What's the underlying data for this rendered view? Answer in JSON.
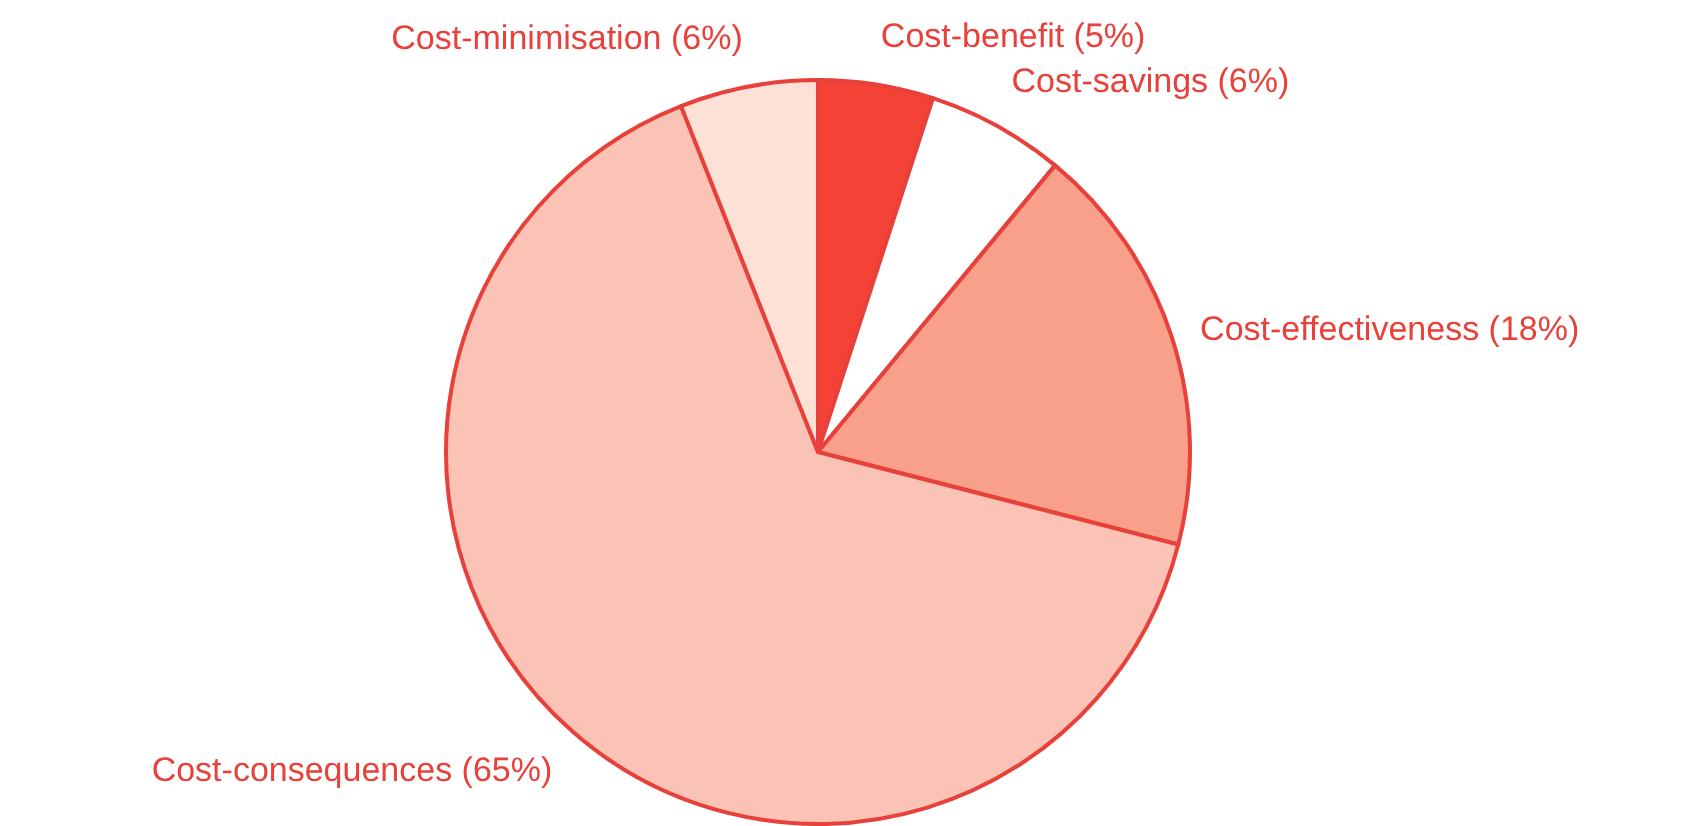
{
  "chart_data": {
    "type": "pie",
    "categories": [
      "Cost-benefit (5%)",
      "Cost-savings (6%)",
      "Cost-effectiveness (18%)",
      "Cost-consequences (65%)",
      "Cost-minimisation (6%)"
    ],
    "values": [
      5,
      6,
      18,
      65,
      6
    ],
    "colors": [
      "#f44336",
      "#ffffff",
      "#f9a08a",
      "#fbc3b5",
      "#fde0d6"
    ]
  }
}
